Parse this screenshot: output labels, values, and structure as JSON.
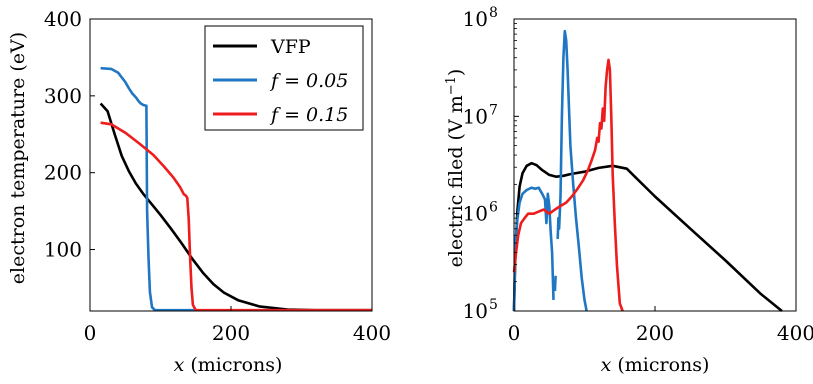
{
  "chart_data": [
    {
      "type": "line",
      "xlabel_var": "x",
      "xlabel_unit": "(microns)",
      "ylabel": "electron temperature (eV)",
      "xlim": [
        0,
        400
      ],
      "ylim": [
        20,
        400
      ],
      "xticks": [
        0,
        200,
        400
      ],
      "yticks": [
        100,
        200,
        300,
        400
      ],
      "legend_position": "top-right",
      "series": [
        {
          "name": "VFP",
          "color": "#000000",
          "x": [
            15,
            25,
            35,
            45,
            55,
            65,
            75,
            85,
            100,
            115,
            130,
            145,
            160,
            175,
            190,
            210,
            240,
            280,
            320,
            360,
            400
          ],
          "y": [
            290,
            280,
            250,
            222,
            202,
            186,
            173,
            162,
            145,
            127,
            108,
            88,
            70,
            55,
            44,
            34,
            26,
            22,
            21,
            21,
            21
          ]
        },
        {
          "name": "f = 0.05",
          "color": "#1f77c4",
          "x": [
            15,
            30,
            40,
            50,
            55,
            60,
            63,
            66,
            69,
            72,
            76,
            80,
            81,
            83,
            85,
            88,
            92,
            100,
            120,
            150
          ],
          "y": [
            336,
            335,
            330,
            318,
            310,
            303,
            300,
            297,
            293,
            290,
            288,
            287,
            150,
            90,
            45,
            25,
            21,
            21,
            21,
            21
          ]
        },
        {
          "name": "f = 0.15",
          "color": "#ee1c1c",
          "x": [
            15,
            30,
            50,
            70,
            90,
            105,
            118,
            128,
            133,
            136,
            138,
            140,
            142,
            144,
            146,
            150,
            160,
            200,
            300,
            400
          ],
          "y": [
            265,
            263,
            252,
            238,
            223,
            208,
            194,
            181,
            172,
            170,
            167,
            140,
            90,
            50,
            28,
            21,
            21,
            21,
            21,
            21
          ]
        }
      ]
    },
    {
      "type": "line",
      "xlabel_var": "x",
      "xlabel_unit": "(microns)",
      "ylabel": "electric filed (V m−1)",
      "ylabel_main": "electric filed (V m",
      "ylabel_exp": "−1",
      "ylabel_close": ")",
      "yscale": "log",
      "xlim": [
        0,
        400
      ],
      "ylim": [
        100000,
        100000000
      ],
      "xticks": [
        0,
        200,
        400
      ],
      "yticks": [
        100000,
        1000000,
        10000000,
        100000000
      ],
      "ytick_labels": [
        {
          "base": "10",
          "exp": "5"
        },
        {
          "base": "10",
          "exp": "6"
        },
        {
          "base": "10",
          "exp": "7"
        },
        {
          "base": "10",
          "exp": "8"
        }
      ],
      "series": [
        {
          "name": "VFP",
          "color": "#000000",
          "x": [
            0,
            2,
            5,
            8,
            12,
            18,
            25,
            32,
            40,
            50,
            60,
            70,
            80,
            100,
            120,
            140,
            160,
            200,
            250,
            300,
            350,
            380
          ],
          "y": [
            100000,
            400000,
            1100000,
            1900000,
            2600000,
            3100000,
            3300000,
            3150000,
            2800000,
            2500000,
            2400000,
            2450000,
            2550000,
            2700000,
            2950000,
            3100000,
            2900000,
            1500000,
            700000,
            330000,
            150000,
            100000
          ]
        },
        {
          "name": "f = 0.05",
          "color": "#1f77c4",
          "segments": [
            {
              "x": [
                0,
                2,
                5,
                8,
                12,
                18,
                25,
                30,
                35,
                40,
                44,
                46,
                48,
                50,
                52,
                54,
                56
              ],
              "y": [
                100000,
                500000,
                900000,
                1300000,
                1600000,
                1750000,
                1850000,
                1800000,
                1850000,
                1600000,
                1400000,
                800000,
                1600000,
                1200000,
                650000,
                400000,
                130000
              ]
            },
            {
              "x": [
                58,
                59
              ],
              "y": [
                160000,
                230000
              ]
            },
            {
              "x": [
                62,
                63,
                64,
                66,
                68,
                70,
                72,
                74,
                76,
                78,
                80,
                84,
                88,
                92,
                96,
                100,
                103
              ],
              "y": [
                550000,
                900000,
                700000,
                1500000,
                10000000,
                40000000,
                75000000,
                60000000,
                30000000,
                12000000,
                5000000,
                2000000,
                900000,
                450000,
                220000,
                130000,
                100000
              ]
            }
          ]
        },
        {
          "name": "f = 0.15",
          "color": "#ee1c1c",
          "x": [
            0,
            3,
            6,
            10,
            15,
            20,
            28,
            35,
            42,
            50,
            58,
            66,
            74,
            82,
            90,
            98,
            105,
            110,
            115,
            118,
            120,
            122,
            124,
            126,
            128,
            130,
            132,
            134,
            136,
            138,
            140,
            143,
            146,
            150,
            154
          ],
          "y": [
            250000,
            400000,
            600000,
            800000,
            900000,
            1000000,
            1000000,
            1050000,
            1100000,
            1000000,
            1100000,
            1200000,
            1300000,
            1500000,
            1800000,
            2200000,
            2800000,
            3500000,
            4500000,
            6000000,
            5500000,
            8500000,
            7500000,
            12000000,
            9000000,
            20000000,
            30000000,
            38000000,
            30000000,
            10000000,
            2500000,
            800000,
            300000,
            120000,
            100000
          ]
        }
      ]
    }
  ]
}
